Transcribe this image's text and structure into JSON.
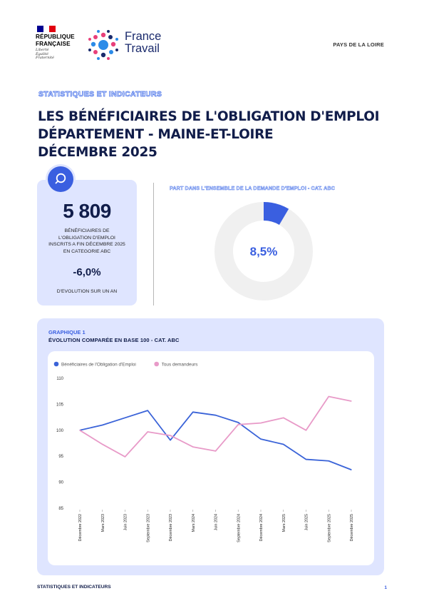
{
  "header": {
    "republique_lines": [
      "RÉPUBLIQUE",
      "FRANÇAISE"
    ],
    "motto_lines": [
      "Liberté",
      "Égalité",
      "Fraternité"
    ],
    "brand_lines": [
      "France",
      "Travail"
    ],
    "region": "PAYS DE LA LOIRE"
  },
  "kicker": "STATISTIQUES ET INDICATEURS",
  "title_lines": [
    "LES BÉNÉFICIAIRES DE L'OBLIGATION D'EMPLOI",
    "DÉPARTEMENT - MAINE-ET-LOIRE",
    "DÉCEMBRE 2025"
  ],
  "kpi": {
    "icon": "search-icon",
    "value": "5 809",
    "label_lines": [
      "BÉNÉFICIAIRES DE",
      "L'OBLIGATION D'EMPLOI",
      "INSCRITS A FIN DÉCEMBRE 2025",
      "EN CATEGORIE ABC"
    ],
    "evolution": "-6,0%",
    "evolution_label": "D'EVOLUTION SUR UN  AN"
  },
  "share": {
    "title": "PART DANS L'ENSEMBLE DE LA DEMANDE D'EMPLOI - CAT. ABC",
    "value_label": "8,5%",
    "fraction": 0.085,
    "colors": {
      "fill": "#3a5fe0",
      "track": "#f0f0f0"
    }
  },
  "graph": {
    "kicker": "GRAPHIQUE 1",
    "title": "ÉVOLUTION COMPARÉE EN BASE 100 - CAT. ABC"
  },
  "chart_data": {
    "type": "line",
    "title": "ÉVOLUTION COMPARÉE EN BASE 100 - CAT. ABC",
    "xlabel": "",
    "ylabel": "",
    "ylim": [
      85,
      110
    ],
    "yticks": [
      85,
      90,
      95,
      100,
      105,
      110
    ],
    "grid": false,
    "legend": "top-left",
    "categories": [
      "Décembre 2022",
      "Mars 2023",
      "Juin 2023",
      "Septembre 2023",
      "Décembre 2023",
      "Mars 2024",
      "Juin 2024",
      "Septembre 2024",
      "Décembre 2024",
      "Mars 2025",
      "Juin 2025",
      "Septembre 2025",
      "Décembre 2025"
    ],
    "series": [
      {
        "name": "Bénéficiaires de l'Obligation d'Emploi",
        "color": "#3a63d8",
        "values": [
          100,
          101,
          102.4,
          103.8,
          98.1,
          103.5,
          102.9,
          101.5,
          98.3,
          97.3,
          94.4,
          94.1,
          92.4
        ]
      },
      {
        "name": "Tous demandeurs",
        "color": "#e89ac8",
        "values": [
          100,
          97.3,
          94.9,
          99.7,
          99.0,
          96.8,
          96.0,
          101.1,
          101.4,
          102.4,
          100.0,
          106.5,
          105.6
        ]
      }
    ]
  },
  "footer": {
    "left": "STATISTIQUES ET INDICATEURS",
    "page": "1"
  }
}
